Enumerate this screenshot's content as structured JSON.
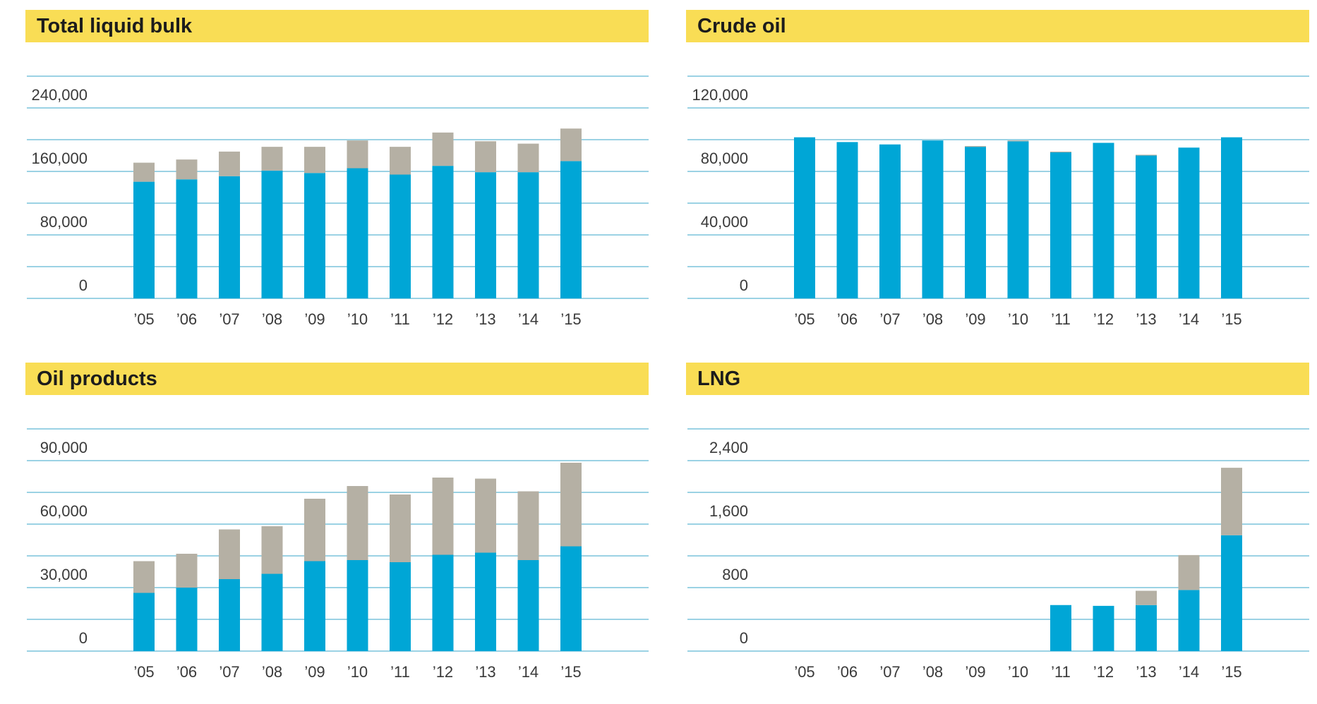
{
  "colors": {
    "primary": "#00a6d6",
    "secondary": "#b5b0a4",
    "title_bg": "#f9dd55"
  },
  "chart_data": [
    {
      "type": "bar",
      "stacked": true,
      "title": "Total liquid bulk",
      "categories": [
        "’05",
        "’06",
        "’07",
        "’08",
        "’09",
        "’10",
        "’11",
        "’12",
        "’13",
        "’14",
        "’15"
      ],
      "series": [
        {
          "values": [
            147000,
            150000,
            154000,
            161000,
            158000,
            164000,
            156000,
            167000,
            159000,
            159000,
            173000
          ]
        },
        {
          "values": [
            24000,
            25000,
            31000,
            30000,
            33000,
            35000,
            35000,
            42000,
            39000,
            36000,
            41000
          ]
        }
      ],
      "yticks": [
        0,
        80000,
        160000,
        240000
      ],
      "ytick_labels": [
        "0",
        "80,000",
        "160,000",
        "240,000"
      ],
      "ylim": [
        0,
        280000
      ],
      "grid": true
    },
    {
      "type": "bar",
      "stacked": true,
      "title": "Crude oil",
      "categories": [
        "’05",
        "’06",
        "’07",
        "’08",
        "’09",
        "’10",
        "’11",
        "’12",
        "’13",
        "’14",
        "’15"
      ],
      "series": [
        {
          "values": [
            101500,
            98500,
            97000,
            99500,
            95500,
            99000,
            92000,
            98000,
            90000,
            95000,
            101500
          ]
        },
        {
          "values": [
            0,
            0,
            0,
            0,
            500,
            500,
            500,
            0,
            500,
            0,
            0
          ]
        }
      ],
      "yticks": [
        0,
        40000,
        80000,
        120000
      ],
      "ytick_labels": [
        "0",
        "40,000",
        "80,000",
        "120,000"
      ],
      "ylim": [
        0,
        140000
      ],
      "grid": true
    },
    {
      "type": "bar",
      "stacked": true,
      "title": "Oil products",
      "categories": [
        "’05",
        "’06",
        "’07",
        "’08",
        "’09",
        "’10",
        "’11",
        "’12",
        "’13",
        "’14",
        "’15"
      ],
      "series": [
        {
          "values": [
            27500,
            30000,
            34000,
            36500,
            42500,
            43000,
            42000,
            45500,
            46500,
            43000,
            49500
          ]
        },
        {
          "values": [
            15000,
            16000,
            23500,
            22500,
            29500,
            35000,
            32000,
            36500,
            35000,
            32500,
            39500
          ]
        }
      ],
      "yticks": [
        0,
        30000,
        60000,
        90000
      ],
      "ytick_labels": [
        "0",
        "30,000",
        "60,000",
        "90,000"
      ],
      "ylim": [
        0,
        105000
      ],
      "grid": true
    },
    {
      "type": "bar",
      "stacked": true,
      "title": "LNG",
      "categories": [
        "’05",
        "’06",
        "’07",
        "’08",
        "’09",
        "’10",
        "’11",
        "’12",
        "’13",
        "’14",
        "’15"
      ],
      "series": [
        {
          "values": [
            0,
            0,
            0,
            0,
            0,
            0,
            580,
            570,
            580,
            770,
            1460
          ]
        },
        {
          "values": [
            0,
            0,
            0,
            0,
            0,
            0,
            0,
            0,
            180,
            440,
            850
          ]
        }
      ],
      "yticks": [
        0,
        800,
        1600,
        2400
      ],
      "ytick_labels": [
        "0",
        "800",
        "1,600",
        "2,400"
      ],
      "ylim": [
        0,
        2800
      ],
      "grid": true
    }
  ]
}
